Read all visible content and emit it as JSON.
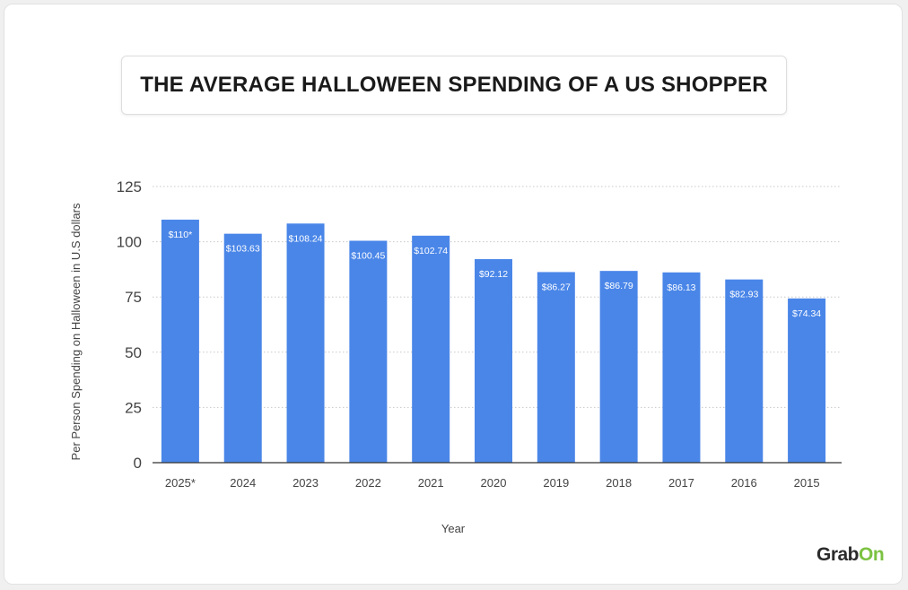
{
  "chart_data": {
    "type": "bar",
    "title": "THE AVERAGE HALLOWEEN SPENDING OF A US SHOPPER",
    "xlabel": "Year",
    "ylabel": "Per Person Spending on Halloween in U.S dollars",
    "ylim": [
      0,
      125
    ],
    "yticks": [
      "0",
      "25",
      "50",
      "75",
      "100",
      "125"
    ],
    "grid": true,
    "bar_color": "#4a86e8",
    "categories": [
      "2025*",
      "2024",
      "2023",
      "2022",
      "2021",
      "2020",
      "2019",
      "2018",
      "2017",
      "2016",
      "2015"
    ],
    "values": [
      110,
      103.63,
      108.24,
      100.45,
      102.74,
      92.12,
      86.27,
      86.79,
      86.13,
      82.93,
      74.34
    ],
    "data_labels": [
      "$110*",
      "$103.63",
      "$108.24",
      "$100.45",
      "$102.74",
      "$92.12",
      "$86.27",
      "$86.79",
      "$86.13",
      "$82.93",
      "$74.34"
    ]
  },
  "brand": {
    "logo_main": "Grab",
    "logo_accent": "On",
    "accent_color": "#7cc242"
  }
}
